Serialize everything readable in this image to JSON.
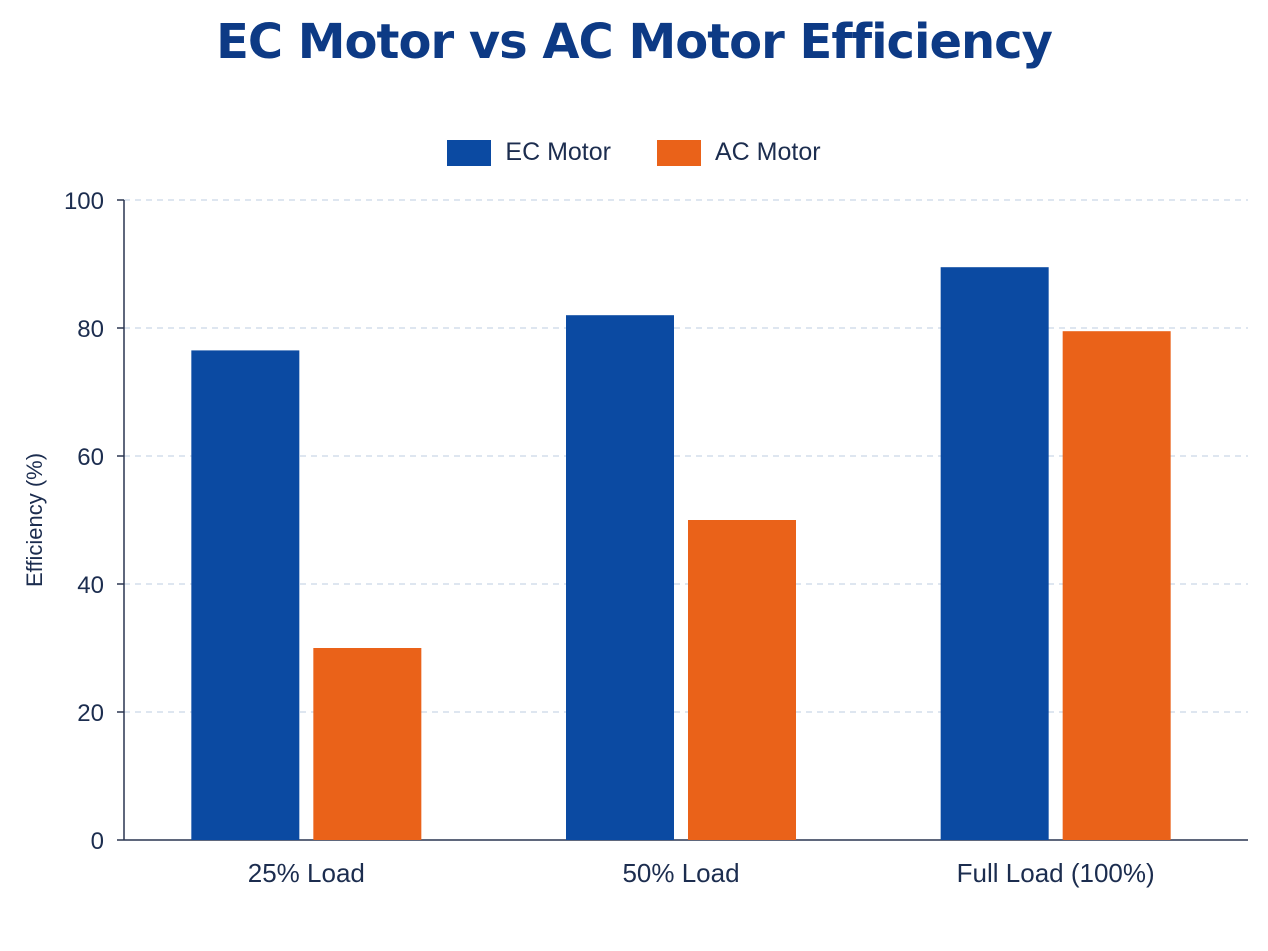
{
  "chart_data": {
    "type": "bar",
    "title": "EC Motor vs AC Motor Efficiency",
    "xlabel": "",
    "ylabel": "Efficiency (%)",
    "ylim": [
      0,
      100
    ],
    "yticks": [
      0,
      20,
      40,
      60,
      80,
      100
    ],
    "categories": [
      "25% Load",
      "50% Load",
      "Full Load (100%)"
    ],
    "series": [
      {
        "name": "EC Motor",
        "values": [
          76.5,
          82,
          89.5
        ],
        "color": "#0b4aa2"
      },
      {
        "name": "AC Motor",
        "values": [
          30,
          50,
          79.5
        ],
        "color": "#ea6219"
      }
    ],
    "grid": true,
    "grid_style": "dashed",
    "legend_position": "top-center"
  }
}
